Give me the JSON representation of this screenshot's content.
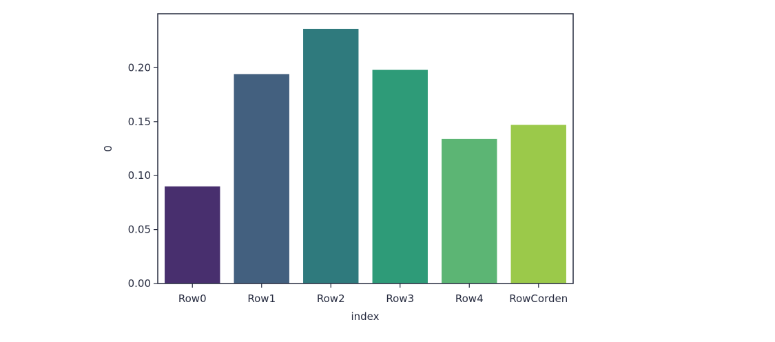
{
  "chart_data": {
    "type": "bar",
    "title": "",
    "xlabel": "index",
    "ylabel": "0",
    "categories": [
      "Row0",
      "Row1",
      "Row2",
      "Row3",
      "Row4",
      "RowCorden"
    ],
    "values": [
      0.09,
      0.194,
      0.236,
      0.198,
      0.134,
      0.147
    ],
    "ylim": [
      0,
      0.25
    ],
    "yticks": [
      0.0,
      0.05,
      0.1,
      0.15,
      0.2
    ],
    "ytick_labels": [
      "0.00",
      "0.05",
      "0.10",
      "0.15",
      "0.20"
    ],
    "grid": false,
    "legend": "none",
    "colors": [
      "#482f6e",
      "#43607f",
      "#2f7a7d",
      "#2e9b78",
      "#5cb574",
      "#9bc94a"
    ],
    "axis_color": "#262b3f"
  }
}
